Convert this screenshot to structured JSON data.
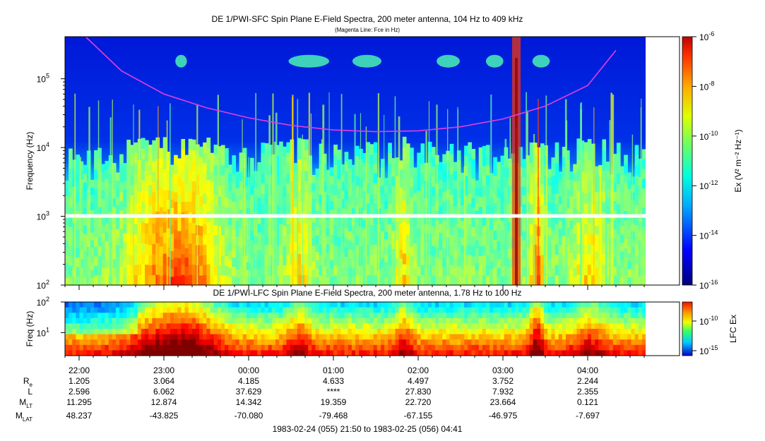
{
  "title": "DE 1/PWI-SFC  Spin Plane E-Field Spectra, 200 meter antenna, 104 Hz to 409 kHz",
  "subtitle": "(Magenta Line: Fce in Hz)",
  "lfc_title": "DE 1/PWI-LFC  Spin Plane E-Field Spectra, 200 meter antenna, 1.78 Hz to 100 Hz",
  "footer": "1983-02-24 (055) 21:50 to 1983-02-25 (056) 04:41",
  "colors": {
    "fce_line": "#e040e0",
    "frame": "#000000"
  },
  "chart_data": [
    {
      "type": "heatmap",
      "name": "SFC spectrogram",
      "title": "DE 1/PWI-SFC  Spin Plane E-Field Spectra, 200 meter antenna, 104 Hz to 409 kHz",
      "subtitle": "(Magenta Line: Fce in Hz)",
      "ylabel": "Frequency (Hz)",
      "yscale": "log",
      "ylim": [
        100,
        409000
      ],
      "yticks": [
        {
          "base": "10",
          "exp": "2"
        },
        {
          "base": "10",
          "exp": "3"
        },
        {
          "base": "10",
          "exp": "4"
        },
        {
          "base": "10",
          "exp": "5"
        }
      ],
      "x_range": [
        "21:50",
        "04:41"
      ],
      "colorbar": {
        "label": "Ex (V² m⁻² Hz⁻¹)",
        "scale": "log",
        "range": [
          1e-16,
          1e-06
        ],
        "ticks": [
          {
            "base": "10",
            "exp": "-6"
          },
          {
            "base": "10",
            "exp": "-8"
          },
          {
            "base": "10",
            "exp": "-10"
          },
          {
            "base": "10",
            "exp": "-12"
          },
          {
            "base": "10",
            "exp": "-14"
          },
          {
            "base": "10",
            "exp": "-16"
          }
        ]
      },
      "fce_line": {
        "name": "Fce",
        "times": [
          "22:05",
          "22:30",
          "23:00",
          "23:30",
          "00:00",
          "00:30",
          "01:00",
          "01:30",
          "02:00",
          "02:30",
          "03:00",
          "03:30",
          "04:00",
          "04:20"
        ],
        "values": [
          400000,
          130000,
          60000,
          38000,
          27000,
          21000,
          18000,
          17000,
          17500,
          20000,
          26000,
          40000,
          80000,
          260000
        ]
      }
    },
    {
      "type": "heatmap",
      "name": "LFC spectrogram",
      "title": "DE 1/PWI-LFC  Spin Plane E-Field Spectra, 200 meter antenna, 1.78 Hz to 100 Hz",
      "ylabel": "Freq (Hz)",
      "yscale": "log",
      "ylim": [
        1.78,
        100
      ],
      "yticks": [
        {
          "base": "10",
          "exp": "1"
        },
        {
          "base": "10",
          "exp": "2"
        }
      ],
      "x_range": [
        "21:50",
        "04:41"
      ],
      "colorbar": {
        "label": "LFC Ex",
        "scale": "log",
        "ticks": [
          {
            "base": "10",
            "exp": "-10"
          },
          {
            "base": "10",
            "exp": "-15"
          }
        ]
      }
    }
  ],
  "x_ticks": [
    "22:00",
    "23:00",
    "00:00",
    "01:00",
    "02:00",
    "03:00",
    "04:00"
  ],
  "ephemeris": {
    "labels": [
      {
        "base": "R",
        "sub": "e"
      },
      {
        "base": "L",
        "sub": ""
      },
      {
        "base": "M",
        "sub": "LT"
      },
      {
        "base": "M",
        "sub": "LAT"
      }
    ],
    "rows": [
      [
        "1.205",
        "3.064",
        "4.185",
        "4.633",
        "4.497",
        "3.752",
        "2.244"
      ],
      [
        "2.596",
        "6.062",
        "37.629",
        "****",
        "27.830",
        "7.932",
        "2.355"
      ],
      [
        "11.295",
        "12.874",
        "14.342",
        "19.359",
        "22.720",
        "23.664",
        "0.121"
      ],
      [
        "48.237",
        "-43.825",
        "-70.080",
        "-79.468",
        "-67.155",
        "-46.975",
        "-7.697"
      ]
    ]
  }
}
